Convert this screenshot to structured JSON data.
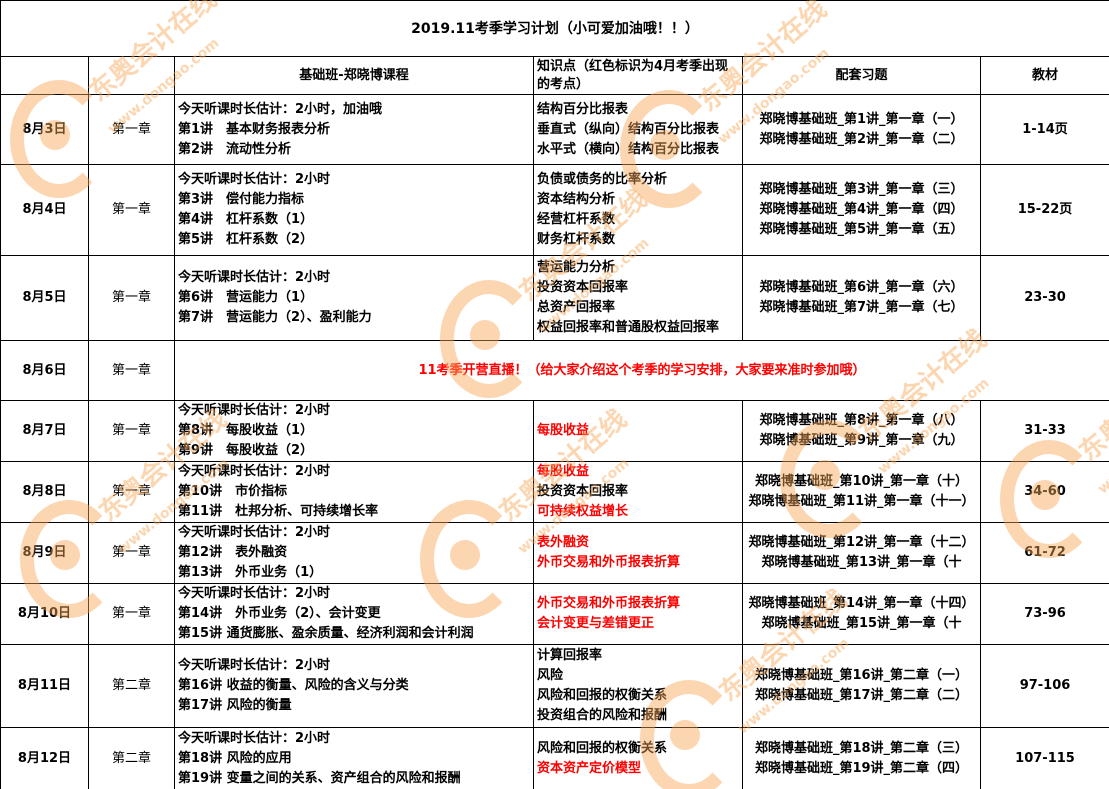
{
  "title": "2019.11考季学习计划（小可爱加油哦！！）",
  "headers": {
    "course": "基础班-郑晓博课程",
    "knowledge": "知识点（红色标识为4月考季出现的考点）",
    "practice": "配套习题",
    "textbook": "教材"
  },
  "watermark": {
    "brand": "东奥会计在线",
    "url": "www.dongao.com",
    "color": "#f7a555"
  },
  "highlight_color": "#ff0000",
  "rows": [
    {
      "date": "8月3日",
      "chapter": "第一章",
      "course": [
        "今天听课时长估计：2小时，加油哦",
        "第1讲　基本财务报表分析",
        "第2讲　流动性分析"
      ],
      "knowledge": [
        {
          "text": "结构百分比报表",
          "red": false
        },
        {
          "text": "垂直式（纵向）结构百分比报表",
          "red": false
        },
        {
          "text": "水平式（横向）结构百分比报表",
          "red": false
        }
      ],
      "practice": [
        "郑晓博基础班_第1讲_第一章（一）",
        "郑晓博基础班_第2讲_第一章（二）"
      ],
      "textbook": "1-14页"
    },
    {
      "date": "8月4日",
      "chapter": "第一章",
      "course": [
        "今天听课时长估计：2小时",
        "第3讲　偿付能力指标",
        "第4讲　杠杆系数（1）",
        "第5讲　杠杆系数（2）"
      ],
      "knowledge": [
        {
          "text": "负债或债务的比率分析",
          "red": false
        },
        {
          "text": "资本结构分析",
          "red": false
        },
        {
          "text": "经营杠杆系数",
          "red": false
        },
        {
          "text": "财务杠杆系数",
          "red": false
        }
      ],
      "practice": [
        "郑晓博基础班_第3讲_第一章（三）",
        "郑晓博基础班_第4讲_第一章（四）",
        "郑晓博基础班_第5讲_第一章（五）"
      ],
      "textbook": "15-22页"
    },
    {
      "date": "8月5日",
      "chapter": "第一章",
      "course": [
        "今天听课时长估计：2小时",
        "第6讲　营运能力（1）",
        "第7讲　营运能力（2）、盈利能力"
      ],
      "knowledge": [
        {
          "text": "营运能力分析",
          "red": false
        },
        {
          "text": "投资资本回报率",
          "red": false
        },
        {
          "text": "总资产回报率",
          "red": false
        },
        {
          "text": "权益回报率和普通股权益回报率",
          "red": false
        }
      ],
      "practice": [
        "郑晓博基础班_第6讲_第一章（六）",
        "郑晓博基础班_第7讲_第一章（七）"
      ],
      "textbook": "23-30"
    },
    {
      "date": "8月6日",
      "chapter": "第一章",
      "notice": "11考季开营直播！（给大家介绍这个考季的学习安排，大家要来准时参加哦）"
    },
    {
      "date": "8月7日",
      "chapter": "第一章",
      "course": [
        "今天听课时长估计：2小时",
        "第8讲　每股收益（1）",
        "第9讲　每股收益（2）"
      ],
      "knowledge": [
        {
          "text": "每股收益",
          "red": true
        }
      ],
      "practice": [
        "郑晓博基础班_第8讲_第一章（八）",
        "郑晓博基础班_第9讲_第一章（九）"
      ],
      "textbook": "31-33"
    },
    {
      "date": "8月8日",
      "chapter": "第一章",
      "course": [
        "今天听课时长估计：2小时",
        "第10讲　市价指标",
        "第11讲　杜邦分析、可持续增长率"
      ],
      "knowledge": [
        {
          "text": "每股收益",
          "red": true
        },
        {
          "text": "投资资本回报率",
          "red": false
        },
        {
          "text": "可持续权益增长",
          "red": true
        }
      ],
      "practice": [
        "郑晓博基础班_第10讲_第一章（十）",
        "郑晓博基础班_第11讲_第一章（十一）"
      ],
      "textbook": "34-60"
    },
    {
      "date": "8月9日",
      "chapter": "第一章",
      "course": [
        "今天听课时长估计：2小时",
        "第12讲　表外融资",
        "第13讲　外币业务（1）"
      ],
      "knowledge": [
        {
          "text": "表外融资",
          "red": true
        },
        {
          "text": "外币交易和外币报表折算",
          "red": true
        }
      ],
      "practice": [
        "郑晓博基础班_第12讲_第一章（十二）",
        "郑晓博基础班_第13讲_第一章（十"
      ],
      "textbook": "61-72"
    },
    {
      "date": "8月10日",
      "chapter": "第一章",
      "course": [
        "今天听课时长估计：2小时",
        "第14讲　外币业务（2）、会计变更",
        "第15讲 通货膨胀、盈余质量、经济利润和会计利润"
      ],
      "knowledge": [
        {
          "text": "外币交易和外币报表折算",
          "red": true
        },
        {
          "text": "会计变更与差错更正",
          "red": true
        }
      ],
      "practice": [
        "郑晓博基础班_第14讲_第一章（十四）",
        "郑晓博基础班_第15讲_第一章（十"
      ],
      "textbook": "73-96"
    },
    {
      "date": "8月11日",
      "chapter": "第二章",
      "course": [
        "今天听课时长估计：2小时",
        "第16讲 收益的衡量、风险的含义与分类",
        "第17讲 风险的衡量"
      ],
      "knowledge": [
        {
          "text": "计算回报率",
          "red": false
        },
        {
          "text": "风险",
          "red": false
        },
        {
          "text": "风险和回报的权衡关系",
          "red": false
        },
        {
          "text": "投资组合的风险和报酬",
          "red": false
        }
      ],
      "practice": [
        "郑晓博基础班_第16讲_第二章（一）",
        "郑晓博基础班_第17讲_第二章（二）"
      ],
      "textbook": "97-106"
    },
    {
      "date": "8月12日",
      "chapter": "第二章",
      "course": [
        "今天听课时长估计：2小时",
        "第18讲 风险的应用",
        "第19讲 变量之间的关系、资产组合的风险和报酬"
      ],
      "knowledge": [
        {
          "text": "风险和回报的权衡关系",
          "red": false
        },
        {
          "text": "资本资产定价模型",
          "red": true
        }
      ],
      "practice": [
        "郑晓博基础班_第18讲_第二章（三）",
        "郑晓博基础班_第19讲_第二章（四）"
      ],
      "textbook": "107-115"
    }
  ]
}
